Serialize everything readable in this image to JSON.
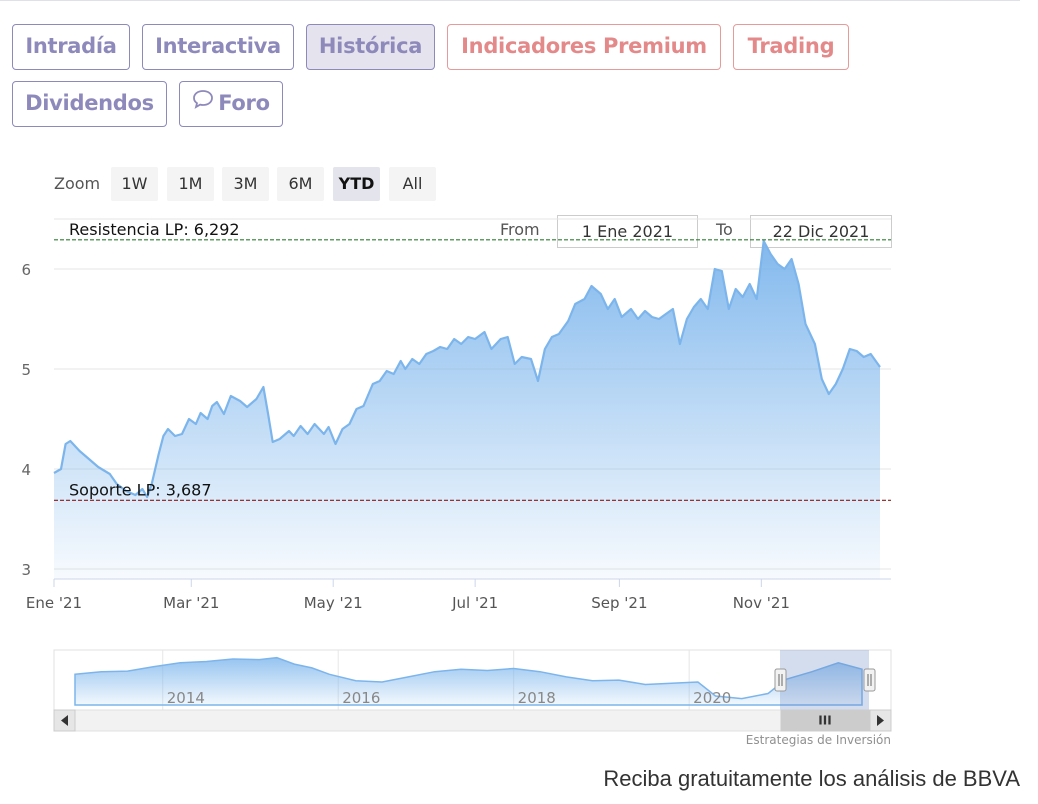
{
  "tabs": [
    {
      "label": "Intradía"
    },
    {
      "label": "Interactiva"
    },
    {
      "label": "Histórica"
    },
    {
      "label": "Indicadores Premium"
    },
    {
      "label": "Trading"
    },
    {
      "label": "Dividendos"
    },
    {
      "label": "Foro"
    }
  ],
  "range_selector": {
    "zoom_label": "Zoom",
    "buttons": [
      "1W",
      "1M",
      "3M",
      "6M",
      "YTD",
      "All"
    ],
    "selected": "YTD",
    "from_label": "From",
    "from_value": "1 Ene 2021",
    "to_label": "To",
    "to_value": "22 Dic 2021"
  },
  "chart_data": {
    "type": "area",
    "title": "",
    "xlabel": "",
    "ylabel": "",
    "ylim": [
      2.9,
      6.5
    ],
    "y_ticks": [
      3,
      4,
      5,
      6
    ],
    "x_tick_labels": [
      "Ene '21",
      "Mar '21",
      "May '21",
      "Jul '21",
      "Sep '21",
      "Nov '21"
    ],
    "x_tick_dates": [
      "2021-01-01",
      "2021-03-01",
      "2021-05-01",
      "2021-07-01",
      "2021-09-01",
      "2021-11-01"
    ],
    "x_range": [
      "2021-01-01",
      "2021-12-22"
    ],
    "series": [
      {
        "color": "#7cb5ec",
        "points": [
          [
            "2021-01-01",
            3.96
          ],
          [
            "2021-01-04",
            4.0
          ],
          [
            "2021-01-06",
            4.25
          ],
          [
            "2021-01-08",
            4.28
          ],
          [
            "2021-01-12",
            4.18
          ],
          [
            "2021-01-15",
            4.12
          ],
          [
            "2021-01-20",
            4.02
          ],
          [
            "2021-01-25",
            3.95
          ],
          [
            "2021-01-28",
            3.85
          ],
          [
            "2021-02-01",
            3.78
          ],
          [
            "2021-02-05",
            3.74
          ],
          [
            "2021-02-08",
            3.8
          ],
          [
            "2021-02-10",
            3.72
          ],
          [
            "2021-02-12",
            3.85
          ],
          [
            "2021-02-15",
            4.15
          ],
          [
            "2021-02-17",
            4.33
          ],
          [
            "2021-02-19",
            4.4
          ],
          [
            "2021-02-22",
            4.33
          ],
          [
            "2021-02-25",
            4.35
          ],
          [
            "2021-02-28",
            4.5
          ],
          [
            "2021-03-03",
            4.45
          ],
          [
            "2021-03-05",
            4.56
          ],
          [
            "2021-03-08",
            4.5
          ],
          [
            "2021-03-10",
            4.63
          ],
          [
            "2021-03-12",
            4.67
          ],
          [
            "2021-03-15",
            4.55
          ],
          [
            "2021-03-18",
            4.73
          ],
          [
            "2021-03-22",
            4.68
          ],
          [
            "2021-03-25",
            4.62
          ],
          [
            "2021-03-29",
            4.7
          ],
          [
            "2021-04-01",
            4.82
          ],
          [
            "2021-04-03",
            4.55
          ],
          [
            "2021-04-05",
            4.27
          ],
          [
            "2021-04-08",
            4.3
          ],
          [
            "2021-04-12",
            4.38
          ],
          [
            "2021-04-14",
            4.33
          ],
          [
            "2021-04-17",
            4.43
          ],
          [
            "2021-04-20",
            4.35
          ],
          [
            "2021-04-23",
            4.45
          ],
          [
            "2021-04-27",
            4.35
          ],
          [
            "2021-04-29",
            4.42
          ],
          [
            "2021-05-02",
            4.25
          ],
          [
            "2021-05-05",
            4.4
          ],
          [
            "2021-05-08",
            4.45
          ],
          [
            "2021-05-11",
            4.6
          ],
          [
            "2021-05-14",
            4.63
          ],
          [
            "2021-05-18",
            4.85
          ],
          [
            "2021-05-21",
            4.88
          ],
          [
            "2021-05-24",
            4.98
          ],
          [
            "2021-05-27",
            4.95
          ],
          [
            "2021-05-30",
            5.08
          ],
          [
            "2021-06-01",
            5.0
          ],
          [
            "2021-06-04",
            5.1
          ],
          [
            "2021-06-07",
            5.05
          ],
          [
            "2021-06-10",
            5.15
          ],
          [
            "2021-06-13",
            5.18
          ],
          [
            "2021-06-16",
            5.22
          ],
          [
            "2021-06-19",
            5.2
          ],
          [
            "2021-06-22",
            5.3
          ],
          [
            "2021-06-25",
            5.25
          ],
          [
            "2021-06-28",
            5.32
          ],
          [
            "2021-07-01",
            5.3
          ],
          [
            "2021-07-05",
            5.37
          ],
          [
            "2021-07-08",
            5.2
          ],
          [
            "2021-07-12",
            5.3
          ],
          [
            "2021-07-15",
            5.32
          ],
          [
            "2021-07-18",
            5.05
          ],
          [
            "2021-07-21",
            5.12
          ],
          [
            "2021-07-25",
            5.1
          ],
          [
            "2021-07-28",
            4.88
          ],
          [
            "2021-07-31",
            5.2
          ],
          [
            "2021-08-03",
            5.32
          ],
          [
            "2021-08-06",
            5.35
          ],
          [
            "2021-08-10",
            5.48
          ],
          [
            "2021-08-13",
            5.65
          ],
          [
            "2021-08-17",
            5.7
          ],
          [
            "2021-08-20",
            5.83
          ],
          [
            "2021-08-24",
            5.75
          ],
          [
            "2021-08-27",
            5.6
          ],
          [
            "2021-08-30",
            5.7
          ],
          [
            "2021-09-02",
            5.52
          ],
          [
            "2021-09-06",
            5.6
          ],
          [
            "2021-09-09",
            5.5
          ],
          [
            "2021-09-12",
            5.58
          ],
          [
            "2021-09-15",
            5.52
          ],
          [
            "2021-09-18",
            5.5
          ],
          [
            "2021-09-21",
            5.55
          ],
          [
            "2021-09-24",
            5.6
          ],
          [
            "2021-09-27",
            5.25
          ],
          [
            "2021-09-30",
            5.5
          ],
          [
            "2021-10-03",
            5.62
          ],
          [
            "2021-10-06",
            5.7
          ],
          [
            "2021-10-09",
            5.6
          ],
          [
            "2021-10-12",
            6.0
          ],
          [
            "2021-10-15",
            5.98
          ],
          [
            "2021-10-18",
            5.6
          ],
          [
            "2021-10-21",
            5.8
          ],
          [
            "2021-10-24",
            5.72
          ],
          [
            "2021-10-27",
            5.85
          ],
          [
            "2021-10-30",
            5.7
          ],
          [
            "2021-11-02",
            6.28
          ],
          [
            "2021-11-05",
            6.15
          ],
          [
            "2021-11-08",
            6.05
          ],
          [
            "2021-11-11",
            6.0
          ],
          [
            "2021-11-14",
            6.1
          ],
          [
            "2021-11-17",
            5.85
          ],
          [
            "2021-11-20",
            5.45
          ],
          [
            "2021-11-24",
            5.25
          ],
          [
            "2021-11-27",
            4.9
          ],
          [
            "2021-11-30",
            4.75
          ],
          [
            "2021-12-03",
            4.85
          ],
          [
            "2021-12-06",
            5.0
          ],
          [
            "2021-12-09",
            5.2
          ],
          [
            "2021-12-12",
            5.18
          ],
          [
            "2021-12-15",
            5.12
          ],
          [
            "2021-12-18",
            5.15
          ],
          [
            "2021-12-22",
            5.02
          ]
        ]
      }
    ],
    "plot_lines": [
      {
        "label": "Resistencia LP: 6,292",
        "value": 6.292,
        "color": "#2e7d32",
        "style": "dashed"
      },
      {
        "label": "Soporte LP: 3,687",
        "value": 3.687,
        "color": "#8b1a1a",
        "style": "dashed"
      }
    ],
    "grid": true,
    "navigator": {
      "x_tick_labels": [
        "2014",
        "2016",
        "2018",
        "2020"
      ],
      "x_range": [
        2013,
        2021.97
      ],
      "selected_range": [
        "2021-01-01",
        "2021-12-22"
      ],
      "scrollbar_grip_label": "III"
    },
    "credits": "Estrategias de Inversión"
  },
  "footer": {
    "cta": "Reciba gratuitamente los análisis de BBVA"
  }
}
